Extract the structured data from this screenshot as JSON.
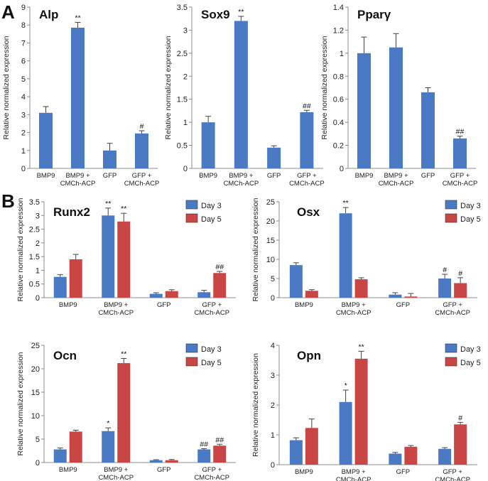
{
  "panel_labels": [
    "A",
    "B"
  ],
  "legend_colors": {
    "Day 3": "#4a7ac4",
    "Day 5": "#c94644",
    "single": "#4a7ac4"
  },
  "chart_data": [
    {
      "id": "alp",
      "type": "bar",
      "title": "Alp",
      "ylabel": "Relative normalized expression",
      "xlabel": "",
      "ylim": [
        0,
        9
      ],
      "yticks": [
        0,
        1,
        2,
        3,
        4,
        5,
        6,
        7,
        8,
        9
      ],
      "categories": [
        [
          "BMP9"
        ],
        [
          "BMP9 +",
          "CMCh-ACP"
        ],
        [
          "GFP"
        ],
        [
          "GFP +",
          "CMCh-ACP"
        ]
      ],
      "series": [
        {
          "name": "",
          "values": [
            3.1,
            7.85,
            1.0,
            1.95
          ],
          "errors": [
            0.35,
            0.3,
            0.4,
            0.15
          ],
          "marks": [
            "",
            "**",
            "",
            "#"
          ]
        }
      ]
    },
    {
      "id": "sox9",
      "type": "bar",
      "title": "Sox9",
      "ylabel": "Relative normalized expression",
      "xlabel": "",
      "ylim": [
        0,
        3.5
      ],
      "yticks": [
        0,
        0.5,
        1,
        1.5,
        2,
        2.5,
        3,
        3.5
      ],
      "categories": [
        [
          "BMP9"
        ],
        [
          "BMP9 +",
          "CMCh-ACP"
        ],
        [
          "GFP"
        ],
        [
          "GFP +",
          "CMCh-ACP"
        ]
      ],
      "series": [
        {
          "name": "",
          "values": [
            1.0,
            3.2,
            0.45,
            1.22
          ],
          "errors": [
            0.13,
            0.1,
            0.04,
            0.04
          ],
          "marks": [
            "",
            "**",
            "",
            "##"
          ]
        }
      ]
    },
    {
      "id": "pparg",
      "type": "bar",
      "title": "Pparγ",
      "ylabel": "Relative normalized expression",
      "xlabel": "",
      "ylim": [
        0,
        1.4
      ],
      "yticks": [
        0,
        0.2,
        0.4,
        0.6,
        0.8,
        1,
        1.2,
        1.4
      ],
      "categories": [
        [
          "BMP9"
        ],
        [
          "BMP9 +",
          "CMCh-ACP"
        ],
        [
          "GFP"
        ],
        [
          "GFP +",
          "CMCh-ACP"
        ]
      ],
      "series": [
        {
          "name": "",
          "values": [
            1.0,
            1.05,
            0.66,
            0.26
          ],
          "errors": [
            0.14,
            0.12,
            0.04,
            0.02
          ],
          "marks": [
            "",
            "",
            "",
            "##"
          ]
        }
      ]
    },
    {
      "id": "runx2",
      "type": "bar",
      "title": "Runx2",
      "ylabel": "Relative normalized expression",
      "xlabel": "",
      "ylim": [
        0,
        3.5
      ],
      "yticks": [
        0,
        0.5,
        1,
        1.5,
        2,
        2.5,
        3,
        3.5
      ],
      "categories": [
        [
          "BMP9"
        ],
        [
          "BMP9 +",
          "CMCh-ACP"
        ],
        [
          "GFP"
        ],
        [
          "GFP +",
          "CMCh-ACP"
        ]
      ],
      "legend": [
        "Day 3",
        "Day 5"
      ],
      "series": [
        {
          "name": "Day 3",
          "values": [
            0.76,
            3.0,
            0.14,
            0.2
          ],
          "errors": [
            0.08,
            0.27,
            0.04,
            0.07
          ],
          "marks": [
            "",
            "**",
            "",
            ""
          ]
        },
        {
          "name": "Day 5",
          "values": [
            1.4,
            2.78,
            0.24,
            0.9
          ],
          "errors": [
            0.18,
            0.3,
            0.05,
            0.06
          ],
          "marks": [
            "",
            "**",
            "",
            "##"
          ]
        }
      ]
    },
    {
      "id": "osx",
      "type": "bar",
      "title": "Osx",
      "ylabel": "Relative normalized expression",
      "xlabel": "",
      "ylim": [
        0,
        25
      ],
      "yticks": [
        0,
        5,
        10,
        15,
        20,
        25
      ],
      "categories": [
        [
          "BMP9"
        ],
        [
          "BMP9 +",
          "CMCh-ACP"
        ],
        [
          "GFP"
        ],
        [
          "GFP +",
          "CMCh-ACP"
        ]
      ],
      "legend": [
        "Day 3",
        "Day 5"
      ],
      "series": [
        {
          "name": "Day 3",
          "values": [
            8.5,
            22.0,
            0.8,
            5.0
          ],
          "errors": [
            0.6,
            1.5,
            0.5,
            1.1
          ],
          "marks": [
            "",
            "**",
            "",
            "#"
          ]
        },
        {
          "name": "Day 5",
          "values": [
            1.8,
            4.8,
            0.3,
            3.8
          ],
          "errors": [
            0.3,
            0.4,
            0.8,
            1.4
          ],
          "marks": [
            "",
            "",
            "",
            "#"
          ]
        }
      ]
    },
    {
      "id": "ocn",
      "type": "bar",
      "title": "Ocn",
      "ylabel": "Relative normalized expression",
      "xlabel": "",
      "ylim": [
        0,
        25
      ],
      "yticks": [
        0,
        5,
        10,
        15,
        20,
        25
      ],
      "categories": [
        [
          "BMP9"
        ],
        [
          "BMP9 +",
          "CMCh-ACP"
        ],
        [
          "GFP"
        ],
        [
          "GFP +",
          "CMCh-ACP"
        ]
      ],
      "legend": [
        "Day 3",
        "Day 5"
      ],
      "series": [
        {
          "name": "Day 3",
          "values": [
            2.8,
            6.7,
            0.5,
            2.8
          ],
          "errors": [
            0.3,
            0.7,
            0.1,
            0.15
          ],
          "marks": [
            "",
            "*",
            "",
            "##"
          ]
        },
        {
          "name": "Day 5",
          "values": [
            6.6,
            21.2,
            0.5,
            3.6
          ],
          "errors": [
            0.3,
            1.0,
            0.15,
            0.3
          ],
          "marks": [
            "",
            "**",
            "",
            "##"
          ]
        }
      ]
    },
    {
      "id": "opn",
      "type": "bar",
      "title": "Opn",
      "ylabel": "Relative normalized expression",
      "xlabel": "",
      "ylim": [
        0,
        4
      ],
      "yticks": [
        0,
        1,
        2,
        3,
        4
      ],
      "categories": [
        [
          "BMP9"
        ],
        [
          "BMP9 +",
          "CMCh-ACP"
        ],
        [
          "GFP"
        ],
        [
          "GFP +",
          "CMCh-ACP"
        ]
      ],
      "legend": [
        "Day 3",
        "Day 5"
      ],
      "series": [
        {
          "name": "Day 3",
          "values": [
            0.82,
            2.1,
            0.37,
            0.53
          ],
          "errors": [
            0.08,
            0.4,
            0.04,
            0.04
          ],
          "marks": [
            "",
            "*",
            "",
            ""
          ]
        },
        {
          "name": "Day 5",
          "values": [
            1.23,
            3.55,
            0.6,
            1.35
          ],
          "errors": [
            0.3,
            0.25,
            0.04,
            0.07
          ],
          "marks": [
            "",
            "**",
            "",
            "#"
          ]
        }
      ]
    }
  ]
}
